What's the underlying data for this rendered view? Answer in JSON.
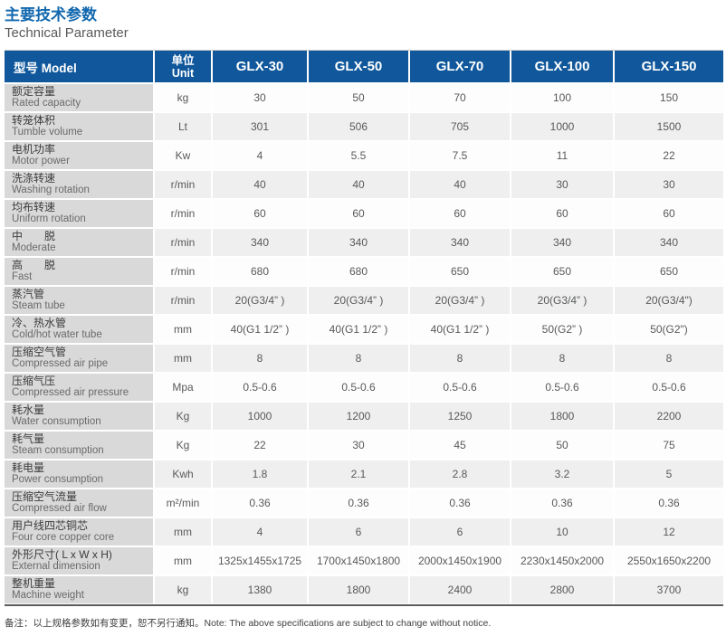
{
  "page": {
    "title_cn": "主要技术参数",
    "title_en": "Technical Parameter",
    "note": "备注：以上规格参数如有变更，恕不另行通知。Note: The above specifications are subject to change without notice."
  },
  "colors": {
    "title_blue": "#1268AE",
    "header_bg": "#10589B",
    "label_column_bg": "#D9D9D9",
    "alt_row_bg": "#EFEFEF",
    "cell_text": "#58595B",
    "bottom_rule": "#5B5C5E"
  },
  "table": {
    "header": {
      "model_label": "型号 Model",
      "unit_cn": "单位",
      "unit_en": "Unit",
      "models": [
        "GLX-30",
        "GLX-50",
        "GLX-70",
        "GLX-100",
        "GLX-150"
      ]
    },
    "rows": [
      {
        "cn": "额定容量",
        "en": "Rated capacity",
        "unit": "kg",
        "values": [
          "30",
          "50",
          "70",
          "100",
          "150"
        ]
      },
      {
        "cn": "转笼体积",
        "en": "Tumble volume",
        "unit": "Lt",
        "values": [
          "301",
          "506",
          "705",
          "1000",
          "1500"
        ]
      },
      {
        "cn": "电机功率",
        "en": "Motor power",
        "unit": "Kw",
        "values": [
          "4",
          "5.5",
          "7.5",
          "11",
          "22"
        ]
      },
      {
        "cn": "洗涤转速",
        "en": "Washing rotation",
        "unit": "r/min",
        "values": [
          "40",
          "40",
          "40",
          "30",
          "30"
        ]
      },
      {
        "cn": "均布转速",
        "en": "Uniform rotation",
        "unit": "r/min",
        "values": [
          "60",
          "60",
          "60",
          "60",
          "60"
        ]
      },
      {
        "cn": "中　　脱",
        "en": "Moderate",
        "unit": "r/min",
        "values": [
          "340",
          "340",
          "340",
          "340",
          "340"
        ]
      },
      {
        "cn": "高　　脱",
        "en": "Fast",
        "unit": "r/min",
        "values": [
          "680",
          "680",
          "650",
          "650",
          "650"
        ]
      },
      {
        "cn": "蒸汽管",
        "en": "Steam tube",
        "unit": "r/min",
        "values": [
          "20(G3/4” )",
          "20(G3/4” )",
          "20(G3/4” )",
          "20(G3/4” )",
          "20(G3/4\")"
        ]
      },
      {
        "cn": "冷、热水管",
        "en": "Cold/hot water tube",
        "unit": "mm",
        "values": [
          "40(G1 1/2” )",
          "40(G1 1/2” )",
          "40(G1 1/2” )",
          "50(G2” )",
          "50(G2\")"
        ]
      },
      {
        "cn": "压缩空气管",
        "en": "Compressed air pipe",
        "unit": "mm",
        "values": [
          "8",
          "8",
          "8",
          "8",
          "8"
        ]
      },
      {
        "cn": "压缩气压",
        "en": "Compressed air pressure",
        "unit": "Mpa",
        "values": [
          "0.5-0.6",
          "0.5-0.6",
          "0.5-0.6",
          "0.5-0.6",
          "0.5-0.6"
        ]
      },
      {
        "cn": "耗水量",
        "en": "Water consumption",
        "unit": "Kg",
        "values": [
          "1000",
          "1200",
          "1250",
          "1800",
          "2200"
        ]
      },
      {
        "cn": "耗气量",
        "en": "Steam consumption",
        "unit": "Kg",
        "values": [
          "22",
          "30",
          "45",
          "50",
          "75"
        ]
      },
      {
        "cn": "耗电量",
        "en": "Power consumption",
        "unit": "Kwh",
        "values": [
          "1.8",
          "2.1",
          "2.8",
          "3.2",
          "5"
        ]
      },
      {
        "cn": "压缩空气流量",
        "en": "Compressed air flow",
        "unit": "m²/min",
        "values": [
          "0.36",
          "0.36",
          "0.36",
          "0.36",
          "0.36"
        ]
      },
      {
        "cn": "用户线四芯铜芯",
        "en": "Four core copper core",
        "unit": "mm",
        "values": [
          "4",
          "6",
          "6",
          "10",
          "12"
        ]
      },
      {
        "cn": "外形尺寸( L x W x H)",
        "en": "External dimension",
        "unit": "mm",
        "values": [
          "1325x1455x1725",
          "1700x1450x1800",
          "2000x1450x1900",
          "2230x1450x2000",
          "2550x1650x2200"
        ]
      },
      {
        "cn": "整机重量",
        "en": "Machine weight",
        "unit": "kg",
        "values": [
          "1380",
          "1800",
          "2400",
          "2800",
          "3700"
        ]
      }
    ]
  }
}
